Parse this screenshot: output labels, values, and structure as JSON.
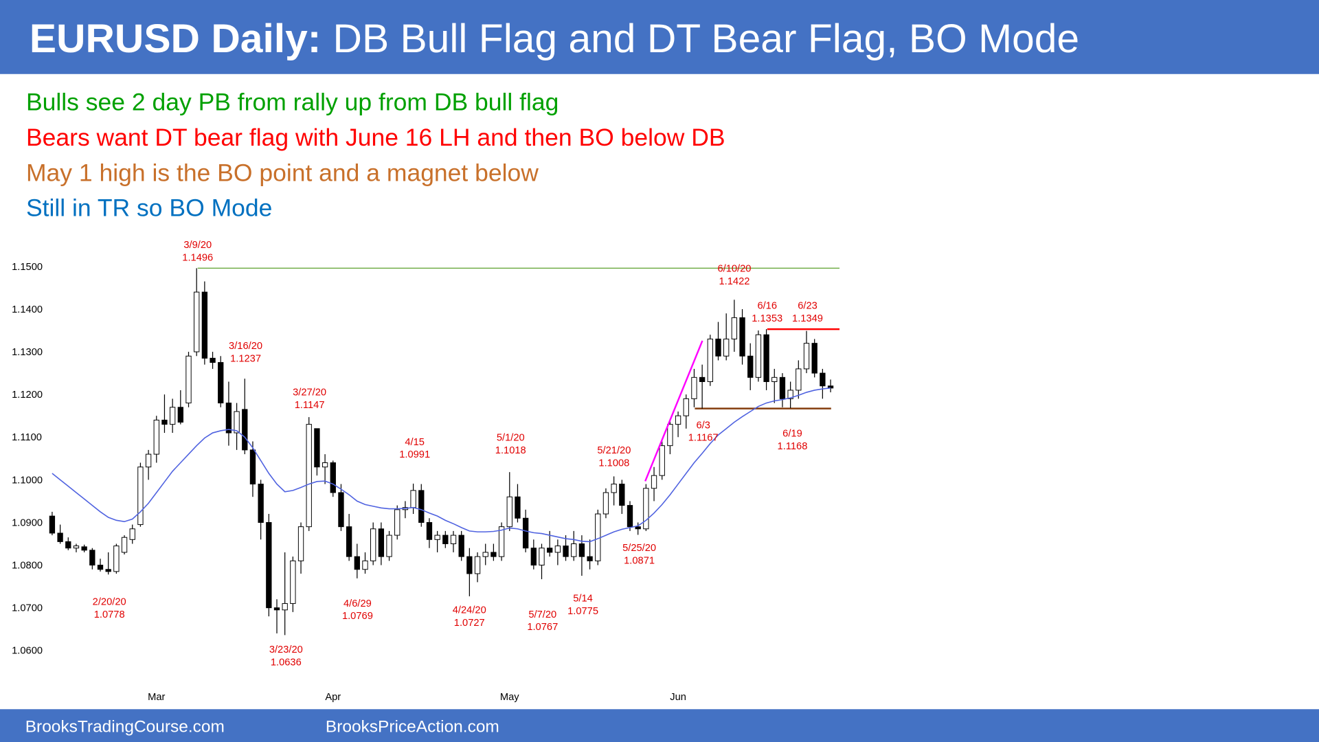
{
  "header": {
    "title_bold": "EURUSD Daily:",
    "title_rest": "DB Bull Flag and DT Bear Flag, BO Mode"
  },
  "notes": [
    {
      "text": "Bulls see 2 day PB from rally up from DB bull flag",
      "color": "#00a000"
    },
    {
      "text": "Bears want DT bear flag with June 16 LH and then BO below DB",
      "color": "#ff0000"
    },
    {
      "text": "May 1 high is the BO point and a magnet below",
      "color": "#c8702a"
    },
    {
      "text": "Still in TR so BO Mode",
      "color": "#0070c0"
    }
  ],
  "chart_data": {
    "type": "candlestick",
    "up_color": "#ffffff",
    "down_color": "#000000",
    "ylim": [
      1.0555,
      1.1535
    ],
    "yticks": [
      {
        "value": 1.06,
        "label": "1.0600"
      },
      {
        "value": 1.07,
        "label": "1.0700"
      },
      {
        "value": 1.08,
        "label": "1.0800"
      },
      {
        "value": 1.09,
        "label": "1.0900"
      },
      {
        "value": 1.1,
        "label": "1.1000"
      },
      {
        "value": 1.11,
        "label": "1.1100"
      },
      {
        "value": 1.12,
        "label": "1.1200"
      },
      {
        "value": 1.13,
        "label": "1.1300"
      },
      {
        "value": 1.14,
        "label": "1.1400"
      },
      {
        "value": 1.15,
        "label": "1.1500"
      }
    ],
    "categories": [
      null,
      null,
      null,
      null,
      null,
      null,
      null,
      null,
      null,
      null,
      null,
      null,
      null,
      "Mar",
      null,
      null,
      null,
      null,
      null,
      null,
      null,
      null,
      null,
      null,
      null,
      null,
      null,
      null,
      null,
      null,
      null,
      null,
      null,
      null,
      null,
      "Apr",
      null,
      null,
      null,
      null,
      null,
      null,
      null,
      null,
      null,
      null,
      null,
      null,
      null,
      null,
      null,
      null,
      null,
      null,
      null,
      null,
      null,
      "May",
      null,
      null,
      null,
      null,
      null,
      null,
      null,
      null,
      null,
      null,
      null,
      null,
      null,
      null,
      null,
      null,
      null,
      null,
      null,
      null,
      "Jun",
      null,
      null,
      null,
      null,
      null,
      null,
      null,
      null,
      null,
      null,
      null,
      null,
      null,
      null,
      null,
      null,
      null,
      null,
      null
    ],
    "open": [
      1.0915,
      1.0875,
      1.0855,
      1.084,
      1.0843,
      1.0835,
      1.08,
      1.079,
      1.0785,
      1.083,
      1.086,
      1.0895,
      1.103,
      1.106,
      1.114,
      1.113,
      1.117,
      1.118,
      1.13,
      1.144,
      1.1285,
      1.1275,
      1.118,
      1.111,
      1.1165,
      1.107,
      1.099,
      1.09,
      1.07,
      1.0695,
      1.071,
      1.081,
      1.089,
      1.112,
      1.103,
      1.104,
      1.097,
      1.089,
      1.082,
      1.079,
      1.081,
      1.0885,
      1.082,
      1.087,
      1.093,
      1.0935,
      1.0975,
      1.09,
      1.086,
      1.087,
      1.085,
      1.087,
      1.082,
      1.078,
      1.082,
      1.083,
      1.082,
      1.089,
      1.096,
      1.091,
      1.084,
      1.08,
      1.084,
      1.083,
      1.0845,
      1.082,
      1.085,
      1.082,
      1.081,
      1.092,
      1.097,
      1.099,
      1.094,
      1.089,
      1.0885,
      1.098,
      1.101,
      1.108,
      1.113,
      1.115,
      1.119,
      1.124,
      1.123,
      1.133,
      1.129,
      1.133,
      1.138,
      1.129,
      1.124,
      1.134,
      1.123,
      1.124,
      1.119,
      1.121,
      1.126,
      1.132,
      1.125,
      1.122
    ],
    "high": [
      1.0925,
      1.0895,
      1.0865,
      1.085,
      1.0848,
      1.084,
      1.0815,
      1.083,
      1.085,
      1.087,
      1.0895,
      1.104,
      1.107,
      1.115,
      1.12,
      1.119,
      1.121,
      1.13,
      1.1496,
      1.1465,
      1.13,
      1.129,
      1.123,
      1.118,
      1.1237,
      1.109,
      1.1,
      1.092,
      1.072,
      1.083,
      1.082,
      1.09,
      1.1147,
      1.112,
      1.106,
      1.1045,
      1.099,
      1.092,
      1.085,
      1.083,
      1.09,
      1.09,
      1.088,
      1.094,
      1.095,
      1.0991,
      1.099,
      1.091,
      1.088,
      1.088,
      1.088,
      1.088,
      1.084,
      1.083,
      1.085,
      1.085,
      1.09,
      1.1018,
      1.099,
      1.093,
      1.086,
      1.085,
      1.088,
      1.086,
      1.087,
      1.088,
      1.087,
      1.086,
      1.093,
      1.098,
      1.1008,
      1.1,
      1.095,
      1.09,
      1.099,
      1.103,
      1.109,
      1.114,
      1.116,
      1.12,
      1.126,
      1.127,
      1.134,
      1.137,
      1.139,
      1.1422,
      1.14,
      1.132,
      1.135,
      1.1353,
      1.126,
      1.125,
      1.123,
      1.128,
      1.1349,
      1.133,
      1.126,
      1.1235
    ],
    "low": [
      1.087,
      1.085,
      1.0835,
      1.083,
      1.083,
      1.079,
      1.0785,
      1.0778,
      1.078,
      1.0825,
      1.085,
      1.089,
      1.1,
      1.104,
      1.111,
      1.111,
      1.113,
      1.117,
      1.129,
      1.127,
      1.126,
      1.117,
      1.108,
      1.107,
      1.106,
      1.096,
      1.086,
      1.068,
      1.064,
      1.0636,
      1.069,
      1.078,
      1.088,
      1.101,
      1.099,
      1.096,
      1.088,
      1.081,
      1.0769,
      1.078,
      1.08,
      1.08,
      1.081,
      1.086,
      1.091,
      1.092,
      1.089,
      1.084,
      1.083,
      1.084,
      1.083,
      1.081,
      1.0727,
      1.076,
      1.08,
      1.081,
      1.081,
      1.088,
      1.09,
      1.083,
      1.079,
      1.0767,
      1.082,
      1.08,
      1.081,
      1.081,
      1.0775,
      1.079,
      1.08,
      1.091,
      1.094,
      1.092,
      1.088,
      1.0871,
      1.088,
      1.095,
      1.1,
      1.106,
      1.11,
      1.112,
      1.117,
      1.1167,
      1.122,
      1.128,
      1.128,
      1.13,
      1.127,
      1.121,
      1.123,
      1.121,
      1.118,
      1.117,
      1.1168,
      1.119,
      1.125,
      1.124,
      1.119,
      1.1205
    ],
    "close": [
      1.0875,
      1.0855,
      1.084,
      1.0845,
      1.0835,
      1.08,
      1.079,
      1.0785,
      1.0845,
      1.0865,
      1.0885,
      1.103,
      1.106,
      1.114,
      1.113,
      1.117,
      1.1135,
      1.129,
      1.144,
      1.1285,
      1.1275,
      1.118,
      1.111,
      1.116,
      1.107,
      1.099,
      1.09,
      1.07,
      1.0695,
      1.071,
      1.081,
      1.089,
      1.113,
      1.103,
      1.104,
      1.097,
      1.089,
      1.082,
      1.079,
      1.081,
      1.0885,
      1.082,
      1.087,
      1.093,
      1.0935,
      1.0975,
      1.09,
      1.086,
      1.087,
      1.085,
      1.087,
      1.082,
      1.078,
      1.082,
      1.083,
      1.082,
      1.089,
      1.096,
      1.091,
      1.084,
      1.08,
      1.084,
      1.083,
      1.0845,
      1.082,
      1.085,
      1.082,
      1.081,
      1.092,
      1.097,
      1.099,
      1.094,
      1.089,
      1.0885,
      1.098,
      1.101,
      1.108,
      1.113,
      1.115,
      1.119,
      1.124,
      1.123,
      1.133,
      1.129,
      1.133,
      1.138,
      1.129,
      1.124,
      1.134,
      1.123,
      1.124,
      1.119,
      1.121,
      1.126,
      1.132,
      1.125,
      1.122,
      1.1215
    ],
    "ema": {
      "color": "#4f62e0",
      "values": [
        1.1015,
        1.1,
        1.0985,
        1.097,
        1.0955,
        1.094,
        1.0925,
        1.0912,
        1.0905,
        1.0902,
        1.0908,
        1.0925,
        1.0945,
        1.097,
        1.0995,
        1.102,
        1.104,
        1.106,
        1.108,
        1.1098,
        1.111,
        1.1115,
        1.1118,
        1.1115,
        1.11,
        1.1075,
        1.1045,
        1.1015,
        1.099,
        1.0972,
        1.0975,
        1.0982,
        1.099,
        1.0996,
        1.0997,
        1.099,
        1.0978,
        1.0965,
        1.095,
        1.0942,
        1.0938,
        1.0934,
        1.0932,
        1.0932,
        1.0933,
        1.0935,
        1.093,
        1.0922,
        1.0915,
        1.0905,
        1.0897,
        1.0888,
        1.088,
        1.0878,
        1.0878,
        1.0879,
        1.0882,
        1.0887,
        1.0885,
        1.088,
        1.0876,
        1.0874,
        1.087,
        1.0866,
        1.0862,
        1.086,
        1.0856,
        1.0855,
        1.0862,
        1.087,
        1.0878,
        1.0884,
        1.0888,
        1.0892,
        1.0905,
        1.0922,
        1.0942,
        1.0965,
        1.099,
        1.1015,
        1.104,
        1.1062,
        1.1085,
        1.1105,
        1.112,
        1.1135,
        1.1148,
        1.116,
        1.1172,
        1.118,
        1.1185,
        1.1188,
        1.1192,
        1.1198,
        1.1205,
        1.121,
        1.1213,
        1.1215
      ]
    },
    "annotations": [
      {
        "date": "2/20/20",
        "value": 1.0778
      },
      {
        "date": "3/9/20",
        "value": 1.1496,
        "line_color": "#70ad47"
      },
      {
        "date": "3/16/20",
        "value": 1.1237
      },
      {
        "date": "3/23/20",
        "value": 1.0636
      },
      {
        "date": "3/27/20",
        "value": 1.1147
      },
      {
        "date": "4/6/29",
        "value": 1.0769
      },
      {
        "date": "4/15",
        "value": 1.0991
      },
      {
        "date": "4/24/20",
        "value": 1.0727
      },
      {
        "date": "5/1/20",
        "value": 1.1018
      },
      {
        "date": "5/7/20",
        "value": 1.0767
      },
      {
        "date": "5/14",
        "value": 1.0775
      },
      {
        "date": "5/21/20",
        "value": 1.1008
      },
      {
        "date": "5/25/20",
        "value": 1.0871
      },
      {
        "date": "6/3",
        "value": 1.1167,
        "line_color": "#843c0c"
      },
      {
        "date": "6/10/20",
        "value": 1.1422
      },
      {
        "date": "6/16",
        "value": 1.1353,
        "line_color": "#ff0000"
      },
      {
        "date": "6/19",
        "value": 1.1168
      },
      {
        "date": "6/23",
        "value": 1.1349
      }
    ]
  },
  "footer": {
    "left": "BrooksTradingCourse.com",
    "right": "BrooksPriceAction.com"
  }
}
